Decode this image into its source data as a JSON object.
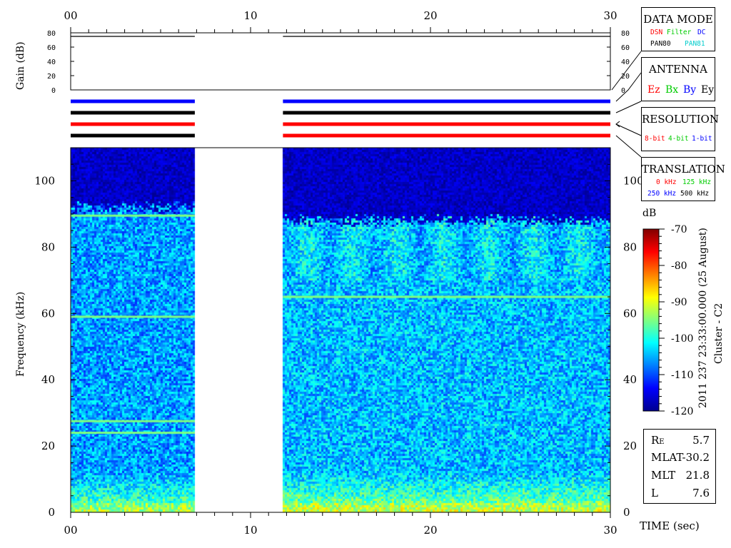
{
  "chart_data": {
    "type": "heatmap",
    "xlabel": "TIME (sec)",
    "ylabel": "Frequency (kHz)",
    "x_ticks": [
      "00",
      "10",
      "20",
      "30"
    ],
    "xlim": [
      0,
      30
    ],
    "ylim": [
      0,
      110
    ],
    "y_ticks": [
      "0",
      "20",
      "40",
      "60",
      "80",
      "100"
    ],
    "data_gaps_sec": [
      [
        6.9,
        11.8
      ]
    ],
    "spectral_lines_khz": [
      {
        "freq": 89.5,
        "start": 0,
        "end": 6.9
      },
      {
        "freq": 59,
        "start": 0,
        "end": 6.9
      },
      {
        "freq": 27.5,
        "start": 0,
        "end": 6.9
      },
      {
        "freq": 24,
        "start": 0,
        "end": 6.9
      },
      {
        "freq": 65,
        "start": 11.8,
        "end": 30
      }
    ],
    "upper_noise_cutoff_khz": [
      {
        "start": 0,
        "end": 6.9,
        "freq": 90
      },
      {
        "start": 11.8,
        "end": 30,
        "freq": 86
      }
    ],
    "colorbar": {
      "label": "dB",
      "range": [
        -120,
        -70
      ],
      "ticks": [
        "-70",
        "-80",
        "-90",
        "-100",
        "-110",
        "-120"
      ],
      "colormap": "jet"
    },
    "gain_panel": {
      "ylabel": "Gain (dB)",
      "ticks": [
        "0",
        "20",
        "40",
        "60",
        "80"
      ],
      "ylim": [
        0,
        80
      ],
      "value_db": 75
    },
    "status_bars": [
      {
        "color": "#0000ff"
      },
      {
        "color": "#000000"
      },
      {
        "color": "#ff0000"
      },
      {
        "color": "#000000",
        "gap_color": "#ff0000"
      }
    ],
    "title_vertical": "2011 237 23:33:00.000 (25 August)",
    "spacecraft": "Cluster - C2"
  },
  "legend_boxes": {
    "data_mode": {
      "title": "DATA MODE",
      "items": [
        {
          "label": "DSN",
          "color": "#ff0000"
        },
        {
          "label": "Filter",
          "color": "#00cc00"
        },
        {
          "label": "DC",
          "color": "#0000ff"
        },
        {
          "label": "PAN80",
          "color": "#000000"
        },
        {
          "label": "PAN81",
          "color": "#00cccc"
        }
      ]
    },
    "antenna": {
      "title": "ANTENNA",
      "items": [
        {
          "label": "Ez",
          "color": "#ff0000"
        },
        {
          "label": "Bx",
          "color": "#00cc00"
        },
        {
          "label": "By",
          "color": "#0000ff"
        },
        {
          "label": "Ey",
          "color": "#000000"
        }
      ]
    },
    "resolution": {
      "title": "RESOLUTION",
      "items": [
        {
          "label": "8-bit",
          "color": "#ff0000"
        },
        {
          "label": "4-bit",
          "color": "#00cc00"
        },
        {
          "label": "1-bit",
          "color": "#0000ff"
        }
      ]
    },
    "translation": {
      "title": "TRANSLATION",
      "items": [
        {
          "label": "0 kHz",
          "color": "#ff0000"
        },
        {
          "label": "125 kHz",
          "color": "#00cc00"
        },
        {
          "label": "250 kHz",
          "color": "#0000ff"
        },
        {
          "label": "500 kHz",
          "color": "#000000"
        }
      ]
    }
  },
  "orbit": [
    {
      "label": "R",
      "sub": "E",
      "value": "5.7"
    },
    {
      "label": "MLAT",
      "sub": "",
      "value": "-30.2"
    },
    {
      "label": "MLT",
      "sub": "",
      "value": "21.8"
    },
    {
      "label": "L",
      "sub": "",
      "value": "7.6"
    }
  ]
}
